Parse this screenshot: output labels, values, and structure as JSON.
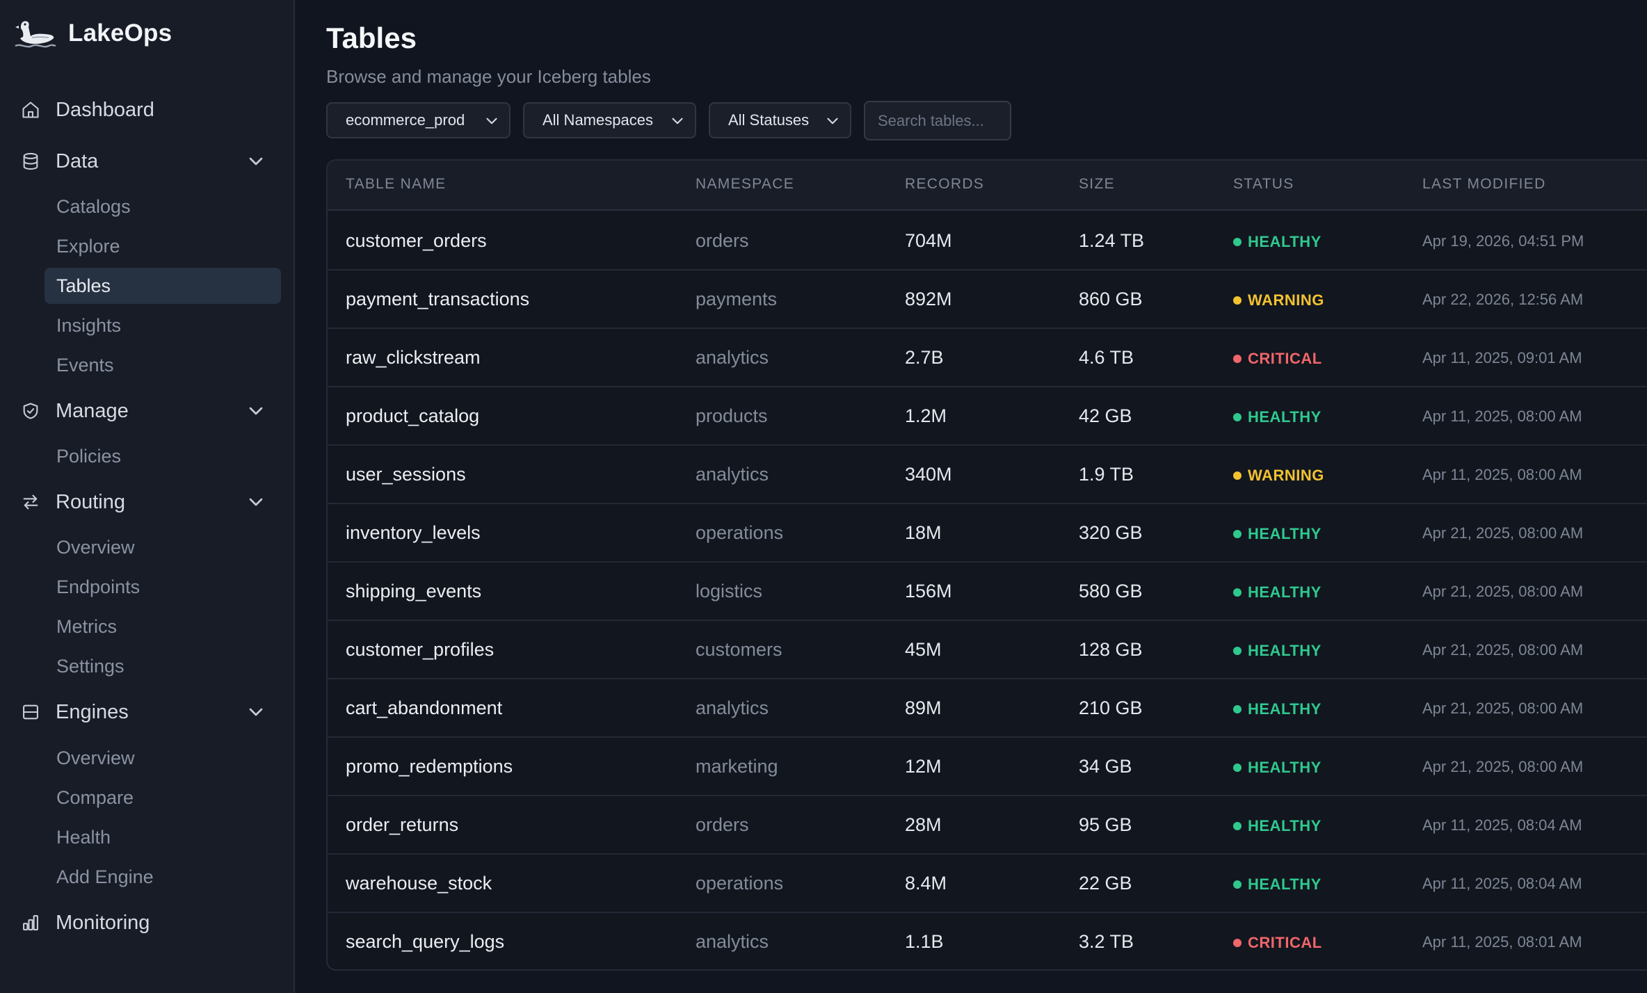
{
  "brand": {
    "name": "LakeOps"
  },
  "sidebar": {
    "sections": [
      {
        "label": "Dashboard",
        "icon": "home-icon"
      },
      {
        "label": "Data",
        "icon": "database-icon",
        "items": [
          "Catalogs",
          "Explore",
          "Tables",
          "Insights",
          "Events"
        ],
        "active": "Tables"
      },
      {
        "label": "Manage",
        "icon": "shield-icon",
        "items": [
          "Policies"
        ]
      },
      {
        "label": "Routing",
        "icon": "arrows-swap-icon",
        "items": [
          "Overview",
          "Endpoints",
          "Metrics",
          "Settings"
        ]
      },
      {
        "label": "Engines",
        "icon": "server-icon",
        "items": [
          "Overview",
          "Compare",
          "Health",
          "Add Engine"
        ]
      },
      {
        "label": "Monitoring",
        "icon": "bar-chart-icon"
      }
    ]
  },
  "page": {
    "title": "Tables",
    "subtitle": "Browse and manage your Iceberg tables"
  },
  "filters": {
    "catalog": "ecommerce_prod",
    "namespace": "All Namespaces",
    "status": "All Statuses",
    "search_placeholder": "Search tables..."
  },
  "table": {
    "headers": [
      "TABLE NAME",
      "NAMESPACE",
      "RECORDS",
      "SIZE",
      "STATUS",
      "LAST MODIFIED"
    ],
    "rows": [
      {
        "name": "customer_orders",
        "namespace": "orders",
        "records": "704M",
        "size": "1.24 TB",
        "status": "HEALTHY",
        "modified": "Apr 19, 2026, 04:51 PM"
      },
      {
        "name": "payment_transactions",
        "namespace": "payments",
        "records": "892M",
        "size": "860 GB",
        "status": "WARNING",
        "modified": "Apr 22, 2026, 12:56 AM"
      },
      {
        "name": "raw_clickstream",
        "namespace": "analytics",
        "records": "2.7B",
        "size": "4.6 TB",
        "status": "CRITICAL",
        "modified": "Apr 11, 2025, 09:01 AM"
      },
      {
        "name": "product_catalog",
        "namespace": "products",
        "records": "1.2M",
        "size": "42 GB",
        "status": "HEALTHY",
        "modified": "Apr 11, 2025, 08:00 AM"
      },
      {
        "name": "user_sessions",
        "namespace": "analytics",
        "records": "340M",
        "size": "1.9 TB",
        "status": "WARNING",
        "modified": "Apr 11, 2025, 08:00 AM"
      },
      {
        "name": "inventory_levels",
        "namespace": "operations",
        "records": "18M",
        "size": "320 GB",
        "status": "HEALTHY",
        "modified": "Apr 21, 2025, 08:00 AM"
      },
      {
        "name": "shipping_events",
        "namespace": "logistics",
        "records": "156M",
        "size": "580 GB",
        "status": "HEALTHY",
        "modified": "Apr 21, 2025, 08:00 AM"
      },
      {
        "name": "customer_profiles",
        "namespace": "customers",
        "records": "45M",
        "size": "128 GB",
        "status": "HEALTHY",
        "modified": "Apr 21, 2025, 08:00 AM"
      },
      {
        "name": "cart_abandonment",
        "namespace": "analytics",
        "records": "89M",
        "size": "210 GB",
        "status": "HEALTHY",
        "modified": "Apr 21, 2025, 08:00 AM"
      },
      {
        "name": "promo_redemptions",
        "namespace": "marketing",
        "records": "12M",
        "size": "34 GB",
        "status": "HEALTHY",
        "modified": "Apr 21, 2025, 08:00 AM"
      },
      {
        "name": "order_returns",
        "namespace": "orders",
        "records": "28M",
        "size": "95 GB",
        "status": "HEALTHY",
        "modified": "Apr 11, 2025, 08:04 AM"
      },
      {
        "name": "warehouse_stock",
        "namespace": "operations",
        "records": "8.4M",
        "size": "22 GB",
        "status": "HEALTHY",
        "modified": "Apr 11, 2025, 08:04 AM"
      },
      {
        "name": "search_query_logs",
        "namespace": "analytics",
        "records": "1.1B",
        "size": "3.2 TB",
        "status": "CRITICAL",
        "modified": "Apr 11, 2025, 08:01 AM"
      }
    ]
  },
  "status_colors": {
    "HEALTHY": "#2fc98e",
    "WARNING": "#f2c230",
    "CRITICAL": "#f0666a"
  }
}
